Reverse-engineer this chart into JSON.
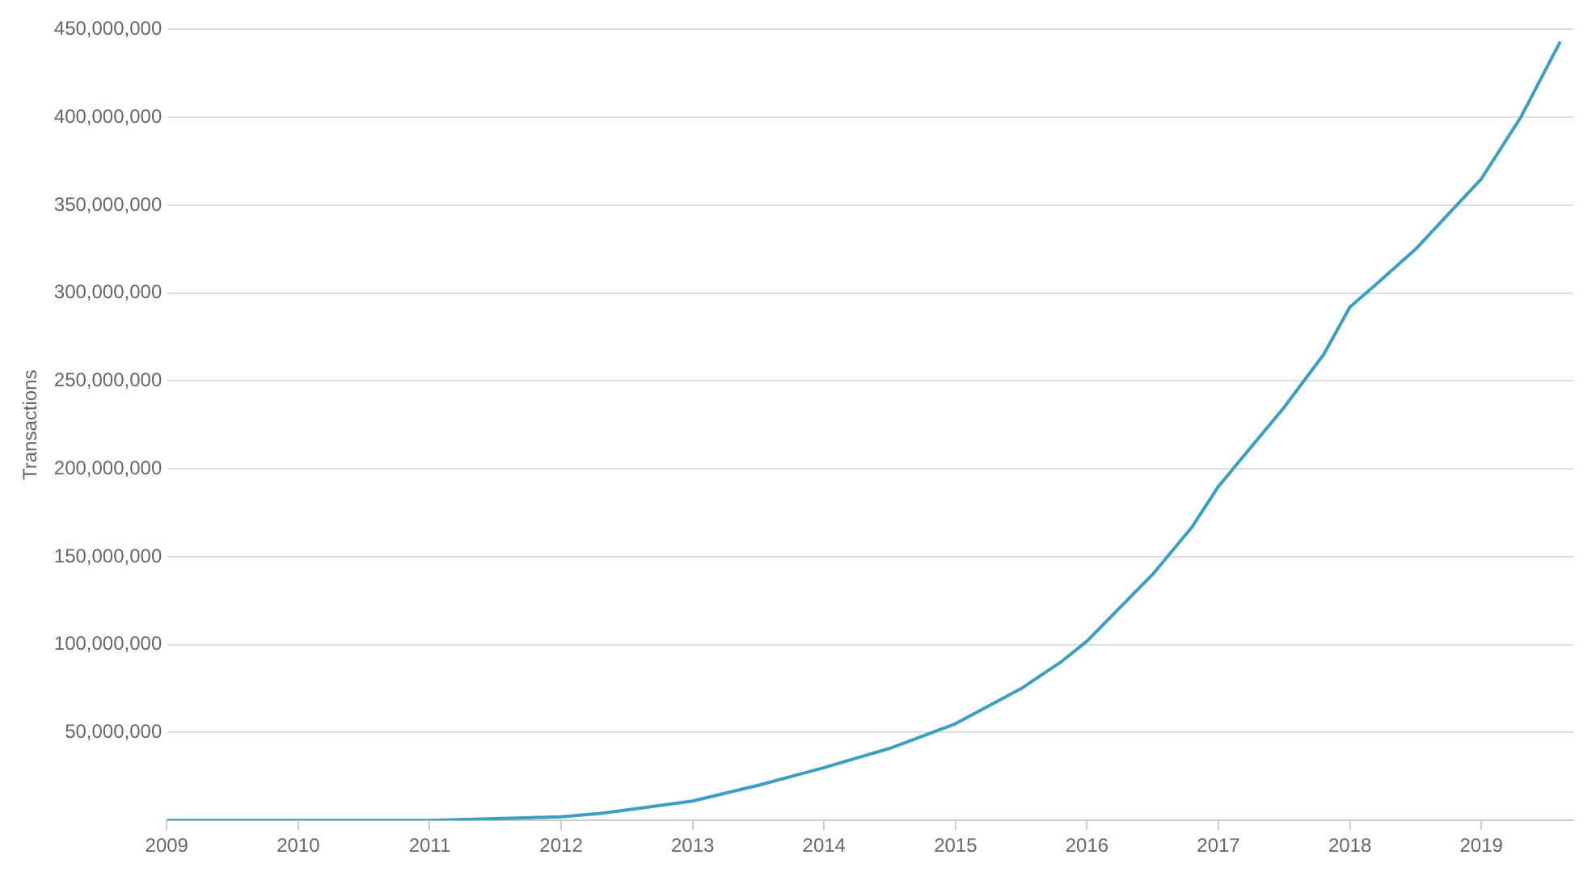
{
  "chart_data": {
    "type": "line",
    "ylabel": "Transactions",
    "x": [
      2009,
      2010,
      2011,
      2011.5,
      2012,
      2012.3,
      2012.5,
      2013,
      2013.5,
      2014,
      2014.5,
      2015,
      2015.5,
      2015.8,
      2016,
      2016.5,
      2016.8,
      2017,
      2017.5,
      2017.8,
      2018,
      2018.2,
      2018.5,
      2019,
      2019.3,
      2019.6
    ],
    "series": [
      {
        "color": "#3a9fc0",
        "values": [
          0,
          0,
          0,
          1000000,
          2000000,
          4000000,
          6000000,
          11000000,
          20000000,
          30000000,
          41000000,
          55000000,
          75000000,
          90000000,
          102000000,
          140000000,
          167000000,
          190000000,
          235000000,
          265000000,
          292000000,
          305000000,
          325000000,
          365000000,
          400000000,
          443000000
        ]
      }
    ],
    "xlim": [
      2009,
      2019.7
    ],
    "xticks": [
      2009,
      2010,
      2011,
      2012,
      2013,
      2014,
      2015,
      2016,
      2017,
      2018,
      2019
    ],
    "ylim": [
      0,
      450000000
    ],
    "yticks": [
      {
        "value": 0,
        "label": null
      },
      {
        "value": 50000000,
        "label": "50,000,000"
      },
      {
        "value": 100000000,
        "label": "100,000,000"
      },
      {
        "value": 150000000,
        "label": "150,000,000"
      },
      {
        "value": 200000000,
        "label": "200,000,000"
      },
      {
        "value": 250000000,
        "label": "250,000,000"
      },
      {
        "value": 300000000,
        "label": "300,000,000"
      },
      {
        "value": 350000000,
        "label": "350,000,000"
      },
      {
        "value": 400000000,
        "label": "400,000,000"
      },
      {
        "value": 450000000,
        "label": "450,000,000"
      }
    ],
    "grid": "y",
    "legend": false,
    "marker": "none",
    "line_style": "solid"
  }
}
